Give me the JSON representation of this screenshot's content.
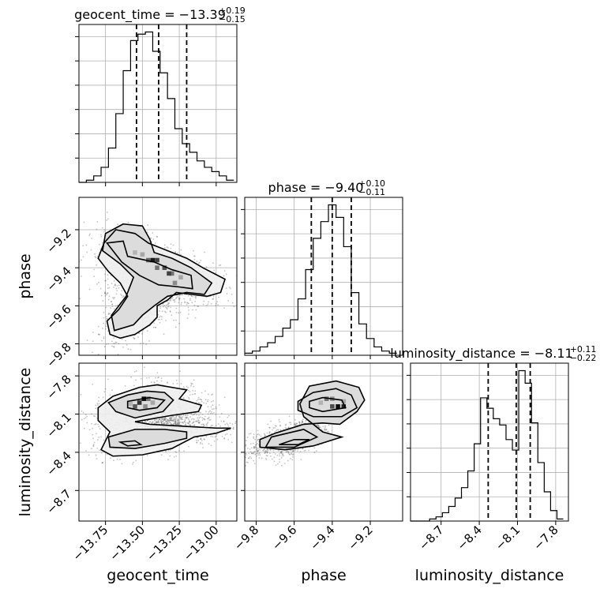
{
  "chart_data": {
    "type": "corner",
    "grid": true,
    "parameters": [
      {
        "name": "geocent_time",
        "axis_label": "geocent_time",
        "range": [
          -13.93,
          -12.86
        ],
        "ticks": [
          -13.75,
          -13.5,
          -13.25,
          -13.0
        ],
        "tick_labels": [
          "−13.75",
          "−13.50",
          "−13.25",
          "−13.00"
        ],
        "title": {
          "main": "geocent_time = −13.39",
          "sup": "+0.19",
          "sub": "−0.15"
        },
        "quantiles": [
          -13.54,
          -13.39,
          -13.2
        ],
        "histogram": {
          "edges": [
            -13.93,
            -13.88,
            -13.83,
            -13.78,
            -13.73,
            -13.68,
            -13.63,
            -13.58,
            -13.53,
            -13.48,
            -13.43,
            -13.38,
            -13.33,
            -13.28,
            -13.23,
            -13.18,
            -13.13,
            -13.08,
            -13.03,
            -12.98,
            -12.93,
            -12.88
          ],
          "counts": [
            0,
            1,
            3,
            7,
            16,
            32,
            52,
            66,
            69,
            70,
            61,
            51,
            39,
            25,
            18,
            14,
            10,
            7,
            5,
            3,
            1
          ]
        }
      },
      {
        "name": "phase",
        "axis_label": "phase",
        "range": [
          -9.86,
          -9.03
        ],
        "ticks": [
          -9.8,
          -9.6,
          -9.4,
          -9.2
        ],
        "tick_labels": [
          "−9.8",
          "−9.6",
          "−9.4",
          "−9.2"
        ],
        "title": {
          "main": "phase = −9.40",
          "sup": "+0.10",
          "sub": "−0.11"
        },
        "quantiles": [
          -9.51,
          -9.4,
          -9.3
        ],
        "histogram": {
          "edges": [
            -9.86,
            -9.82,
            -9.78,
            -9.74,
            -9.7,
            -9.66,
            -9.62,
            -9.58,
            -9.54,
            -9.5,
            -9.46,
            -9.42,
            -9.38,
            -9.34,
            -9.3,
            -9.26,
            -9.22,
            -9.18,
            -9.14,
            -9.1,
            -9.06
          ],
          "counts": [
            1,
            2,
            4,
            6,
            9,
            13,
            17,
            27,
            41,
            56,
            64,
            72,
            66,
            52,
            30,
            15,
            8,
            4,
            2,
            1
          ]
        }
      },
      {
        "name": "luminosity_distance",
        "axis_label": "luminosity_distance",
        "range": [
          -8.94,
          -7.7
        ],
        "ticks": [
          -8.7,
          -8.4,
          -8.1,
          -7.8
        ],
        "tick_labels": [
          "−8.7",
          "−8.4",
          "−8.1",
          "−7.8"
        ],
        "title": {
          "main": "luminosity_distance = −8.11",
          "sup": "+0.11",
          "sub": "−0.22"
        },
        "quantiles": [
          -8.33,
          -8.11,
          -8.0
        ],
        "histogram": {
          "edges": [
            -8.94,
            -8.89,
            -8.84,
            -8.79,
            -8.74,
            -8.69,
            -8.64,
            -8.59,
            -8.54,
            -8.49,
            -8.44,
            -8.39,
            -8.34,
            -8.29,
            -8.24,
            -8.19,
            -8.14,
            -8.09,
            -8.04,
            -7.99,
            -7.94,
            -7.89,
            -7.84,
            -7.79,
            -7.74
          ],
          "counts": [
            0,
            0,
            0,
            1,
            2,
            4,
            7,
            11,
            16,
            24,
            37,
            59,
            54,
            49,
            46,
            39,
            34,
            72,
            66,
            47,
            28,
            14,
            5,
            1
          ]
        }
      }
    ],
    "pairs": [
      {
        "x": "geocent_time",
        "y": "phase",
        "scatter_center": [
          -13.4,
          -9.42
        ],
        "contours": [
          [
            [
              -13.74,
              -9.27
            ],
            [
              -13.63,
              -9.26
            ],
            [
              -13.6,
              -9.34
            ],
            [
              -13.42,
              -9.37
            ],
            [
              -13.3,
              -9.41
            ],
            [
              -13.17,
              -9.44
            ],
            [
              -13.16,
              -9.51
            ],
            [
              -13.26,
              -9.5
            ],
            [
              -13.39,
              -9.49
            ],
            [
              -13.52,
              -9.44
            ],
            [
              -13.64,
              -9.37
            ]
          ],
          [
            [
              -13.63,
              -9.17
            ],
            [
              -13.5,
              -9.18
            ],
            [
              -13.45,
              -9.25
            ],
            [
              -13.42,
              -9.32
            ],
            [
              -13.3,
              -9.35
            ],
            [
              -13.17,
              -9.4
            ],
            [
              -13.03,
              -9.48
            ],
            [
              -13.08,
              -9.54
            ],
            [
              -13.2,
              -9.53
            ],
            [
              -13.33,
              -9.55
            ],
            [
              -13.42,
              -9.6
            ],
            [
              -13.5,
              -9.65
            ],
            [
              -13.56,
              -9.7
            ],
            [
              -13.69,
              -9.73
            ],
            [
              -13.71,
              -9.65
            ],
            [
              -13.61,
              -9.55
            ],
            [
              -13.56,
              -9.45
            ],
            [
              -13.65,
              -9.38
            ],
            [
              -13.77,
              -9.31
            ],
            [
              -13.75,
              -9.22
            ]
          ],
          [
            [
              -13.46,
              -9.27
            ],
            [
              -13.33,
              -9.31
            ],
            [
              -13.2,
              -9.35
            ],
            [
              -13.09,
              -9.4
            ],
            [
              -12.94,
              -9.46
            ],
            [
              -12.97,
              -9.53
            ],
            [
              -13.06,
              -9.55
            ],
            [
              -13.17,
              -9.54
            ],
            [
              -13.27,
              -9.53
            ],
            [
              -13.33,
              -9.57
            ],
            [
              -13.4,
              -9.6
            ],
            [
              -13.4,
              -9.66
            ],
            [
              -13.45,
              -9.7
            ],
            [
              -13.55,
              -9.75
            ],
            [
              -13.65,
              -9.77
            ],
            [
              -13.72,
              -9.75
            ],
            [
              -13.74,
              -9.68
            ],
            [
              -13.66,
              -9.62
            ],
            [
              -13.6,
              -9.55
            ],
            [
              -13.65,
              -9.48
            ],
            [
              -13.73,
              -9.42
            ],
            [
              -13.8,
              -9.35
            ],
            [
              -13.76,
              -9.27
            ],
            [
              -13.68,
              -9.2
            ],
            [
              -13.55,
              -9.22
            ]
          ]
        ],
        "cells": [
          [
            -13.46,
            -9.36,
            0.6
          ],
          [
            -13.43,
            -9.36,
            0.9
          ],
          [
            -13.4,
            -9.36,
            0.75
          ],
          [
            -13.4,
            -9.4,
            0.55
          ],
          [
            -13.35,
            -9.4,
            0.7
          ],
          [
            -13.3,
            -9.43,
            0.55
          ],
          [
            -13.32,
            -9.43,
            0.75
          ],
          [
            -13.28,
            -9.48,
            0.45
          ],
          [
            -13.5,
            -9.33,
            0.35
          ],
          [
            -13.55,
            -9.32,
            0.3
          ],
          [
            -13.24,
            -9.45,
            0.35
          ]
        ]
      },
      {
        "x": "geocent_time",
        "y": "luminosity_distance",
        "scatter_center": [
          -13.4,
          -8.2
        ],
        "contours": [
          [
            [
              -13.6,
              -8.0
            ],
            [
              -13.45,
              -7.97
            ],
            [
              -13.35,
              -7.99
            ],
            [
              -13.4,
              -8.05
            ],
            [
              -13.52,
              -8.07
            ],
            [
              -13.6,
              -8.05
            ]
          ],
          [
            [
              -13.73,
              -8.01
            ],
            [
              -13.6,
              -7.95
            ],
            [
              -13.47,
              -7.92
            ],
            [
              -13.35,
              -7.93
            ],
            [
              -13.29,
              -7.99
            ],
            [
              -13.36,
              -8.08
            ],
            [
              -13.55,
              -8.13
            ],
            [
              -13.68,
              -8.08
            ]
          ],
          [
            [
              -13.65,
              -8.32
            ],
            [
              -13.55,
              -8.31
            ],
            [
              -13.51,
              -8.34
            ],
            [
              -13.6,
              -8.35
            ]
          ],
          [
            [
              -13.73,
              -8.28
            ],
            [
              -13.55,
              -8.22
            ],
            [
              -13.35,
              -8.22
            ],
            [
              -13.2,
              -8.24
            ],
            [
              -13.2,
              -8.29
            ],
            [
              -13.35,
              -8.33
            ],
            [
              -13.55,
              -8.37
            ],
            [
              -13.72,
              -8.36
            ]
          ],
          [
            [
              -13.8,
              -8.05
            ],
            [
              -13.7,
              -7.96
            ],
            [
              -13.52,
              -7.89
            ],
            [
              -13.4,
              -7.87
            ],
            [
              -13.2,
              -7.91
            ],
            [
              -13.25,
              -7.98
            ],
            [
              -13.1,
              -8.03
            ],
            [
              -13.12,
              -8.08
            ],
            [
              -13.3,
              -8.11
            ],
            [
              -13.55,
              -8.16
            ],
            [
              -13.45,
              -8.18
            ],
            [
              -13.3,
              -8.19
            ],
            [
              -13.15,
              -8.2
            ],
            [
              -13.0,
              -8.21
            ],
            [
              -12.9,
              -8.21
            ],
            [
              -13.0,
              -8.25
            ],
            [
              -13.15,
              -8.28
            ],
            [
              -13.3,
              -8.37
            ],
            [
              -13.5,
              -8.42
            ],
            [
              -13.7,
              -8.43
            ],
            [
              -13.78,
              -8.38
            ],
            [
              -13.72,
              -8.24
            ],
            [
              -13.8,
              -8.15
            ]
          ]
        ],
        "cells": [
          [
            -13.55,
            -8.04,
            0.65
          ],
          [
            -13.52,
            -8.01,
            0.8
          ],
          [
            -13.49,
            -7.98,
            0.95
          ],
          [
            -13.46,
            -7.98,
            0.55
          ],
          [
            -13.48,
            -8.04,
            0.45
          ],
          [
            -13.43,
            -8.01,
            0.35
          ],
          [
            -13.58,
            -8.02,
            0.3
          ]
        ]
      },
      {
        "x": "phase",
        "y": "luminosity_distance",
        "scatter_center": [
          -9.45,
          -8.2
        ],
        "contours": [
          [
            [
              -9.52,
              -8.0
            ],
            [
              -9.45,
              -7.97
            ],
            [
              -9.35,
              -7.99
            ],
            [
              -9.33,
              -8.05
            ],
            [
              -9.45,
              -8.08
            ],
            [
              -9.52,
              -8.05
            ]
          ],
          [
            [
              -9.58,
              -8.0
            ],
            [
              -9.5,
              -7.93
            ],
            [
              -9.38,
              -7.9
            ],
            [
              -9.3,
              -7.95
            ],
            [
              -9.27,
              -8.05
            ],
            [
              -9.35,
              -8.12
            ],
            [
              -9.5,
              -8.12
            ],
            [
              -9.58,
              -8.07
            ]
          ],
          [
            [
              -9.57,
              -8.02
            ],
            [
              -9.52,
              -7.88
            ],
            [
              -9.38,
              -7.84
            ],
            [
              -9.26,
              -7.89
            ],
            [
              -9.23,
              -7.99
            ],
            [
              -9.27,
              -8.08
            ],
            [
              -9.36,
              -8.18
            ],
            [
              -9.45,
              -8.17
            ],
            [
              -9.55,
              -8.18
            ],
            [
              -9.7,
              -8.25
            ],
            [
              -9.78,
              -8.3
            ],
            [
              -9.78,
              -8.36
            ],
            [
              -9.65,
              -8.38
            ],
            [
              -9.5,
              -8.35
            ],
            [
              -9.35,
              -8.28
            ],
            [
              -9.45,
              -8.24
            ],
            [
              -9.55,
              -8.12
            ]
          ],
          [
            [
              -9.68,
              -8.34
            ],
            [
              -9.6,
              -8.3
            ],
            [
              -9.52,
              -8.3
            ],
            [
              -9.58,
              -8.34
            ]
          ],
          [
            [
              -9.72,
              -8.28
            ],
            [
              -9.55,
              -8.22
            ],
            [
              -9.48,
              -8.28
            ],
            [
              -9.6,
              -8.36
            ],
            [
              -9.75,
              -8.36
            ]
          ]
        ],
        "cells": [
          [
            -9.43,
            -7.98,
            0.55
          ],
          [
            -9.4,
            -8.04,
            0.7
          ],
          [
            -9.37,
            -8.04,
            0.95
          ],
          [
            -9.34,
            -8.04,
            0.85
          ],
          [
            -9.4,
            -7.98,
            0.45
          ],
          [
            -9.46,
            -8.01,
            0.3
          ],
          [
            -9.34,
            -8.0,
            0.35
          ]
        ]
      }
    ]
  }
}
